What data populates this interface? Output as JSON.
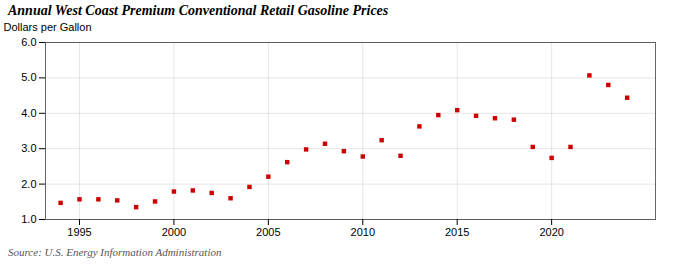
{
  "chart_data": {
    "type": "scatter",
    "title": "Annual West Coast Premium Conventional Retail Gasoline Prices",
    "ylabel": "Dollars per Gallon",
    "source": "Source: U.S. Energy Information Administration",
    "color": "#cc0000",
    "marker": "square",
    "grid": true,
    "x": [
      1994,
      1995,
      1996,
      1997,
      1998,
      1999,
      2000,
      2001,
      2002,
      2003,
      2004,
      2005,
      2006,
      2007,
      2008,
      2009,
      2010,
      2011,
      2012,
      2013,
      2014,
      2015,
      2016,
      2017,
      2018,
      2019,
      2020,
      2021,
      2022,
      2023,
      2024
    ],
    "values": [
      1.47,
      1.57,
      1.57,
      1.54,
      1.35,
      1.51,
      1.79,
      1.82,
      1.75,
      1.6,
      1.92,
      2.21,
      2.62,
      2.98,
      3.14,
      2.93,
      2.78,
      3.24,
      2.8,
      3.63,
      3.95,
      4.09,
      3.93,
      3.86,
      3.82,
      3.05,
      2.74,
      3.05,
      5.07,
      4.8,
      4.44
    ],
    "xlim": [
      1993.2,
      2025.5
    ],
    "xticks": [
      1995,
      2000,
      2005,
      2010,
      2015,
      2020
    ],
    "ylim": [
      1.0,
      6.0
    ],
    "yticks": [
      {
        "value": 1.0,
        "label": "1.0"
      },
      {
        "value": 2.0,
        "label": "2.0"
      },
      {
        "value": 3.0,
        "label": "3.0"
      },
      {
        "value": 4.0,
        "label": "4.0"
      },
      {
        "value": 5.0,
        "label": "5.0"
      },
      {
        "value": 6.0,
        "label": "6.0"
      }
    ]
  }
}
